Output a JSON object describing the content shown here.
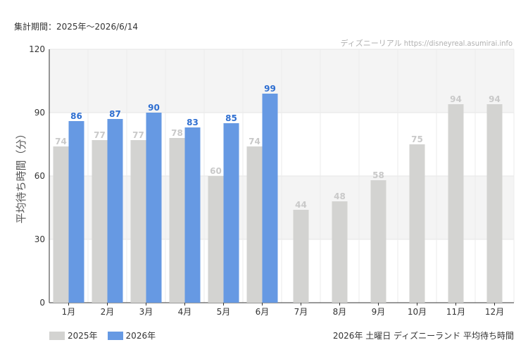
{
  "header": {
    "period": "集計期間：2025年〜2026/6/14",
    "credit": "ディズニーリアル https://disneyreal.asumirai.info"
  },
  "footer": {
    "title": "2026年 土曜日 ディズニーランド 平均待ち時間"
  },
  "colors": {
    "series_2025": "#d3d3d1",
    "series_2025_label": "#c9c9c9",
    "series_2026": "#6699e3",
    "series_2026_label": "#2f6fd1"
  },
  "chart_data": {
    "type": "bar",
    "ylabel": "平均待ち時間（分）",
    "ylim": [
      0,
      120
    ],
    "yticks": [
      0,
      30,
      60,
      90,
      120
    ],
    "categories": [
      "1月",
      "2月",
      "3月",
      "4月",
      "5月",
      "6月",
      "7月",
      "8月",
      "9月",
      "10月",
      "11月",
      "12月"
    ],
    "series": [
      {
        "name": "2025年",
        "values": [
          74,
          77,
          77,
          78,
          60,
          74,
          44,
          48,
          58,
          75,
          94,
          94
        ]
      },
      {
        "name": "2026年",
        "values": [
          86,
          87,
          90,
          83,
          85,
          99,
          null,
          null,
          null,
          null,
          null,
          null
        ]
      }
    ],
    "legend": "bottom-left",
    "grid": true
  }
}
